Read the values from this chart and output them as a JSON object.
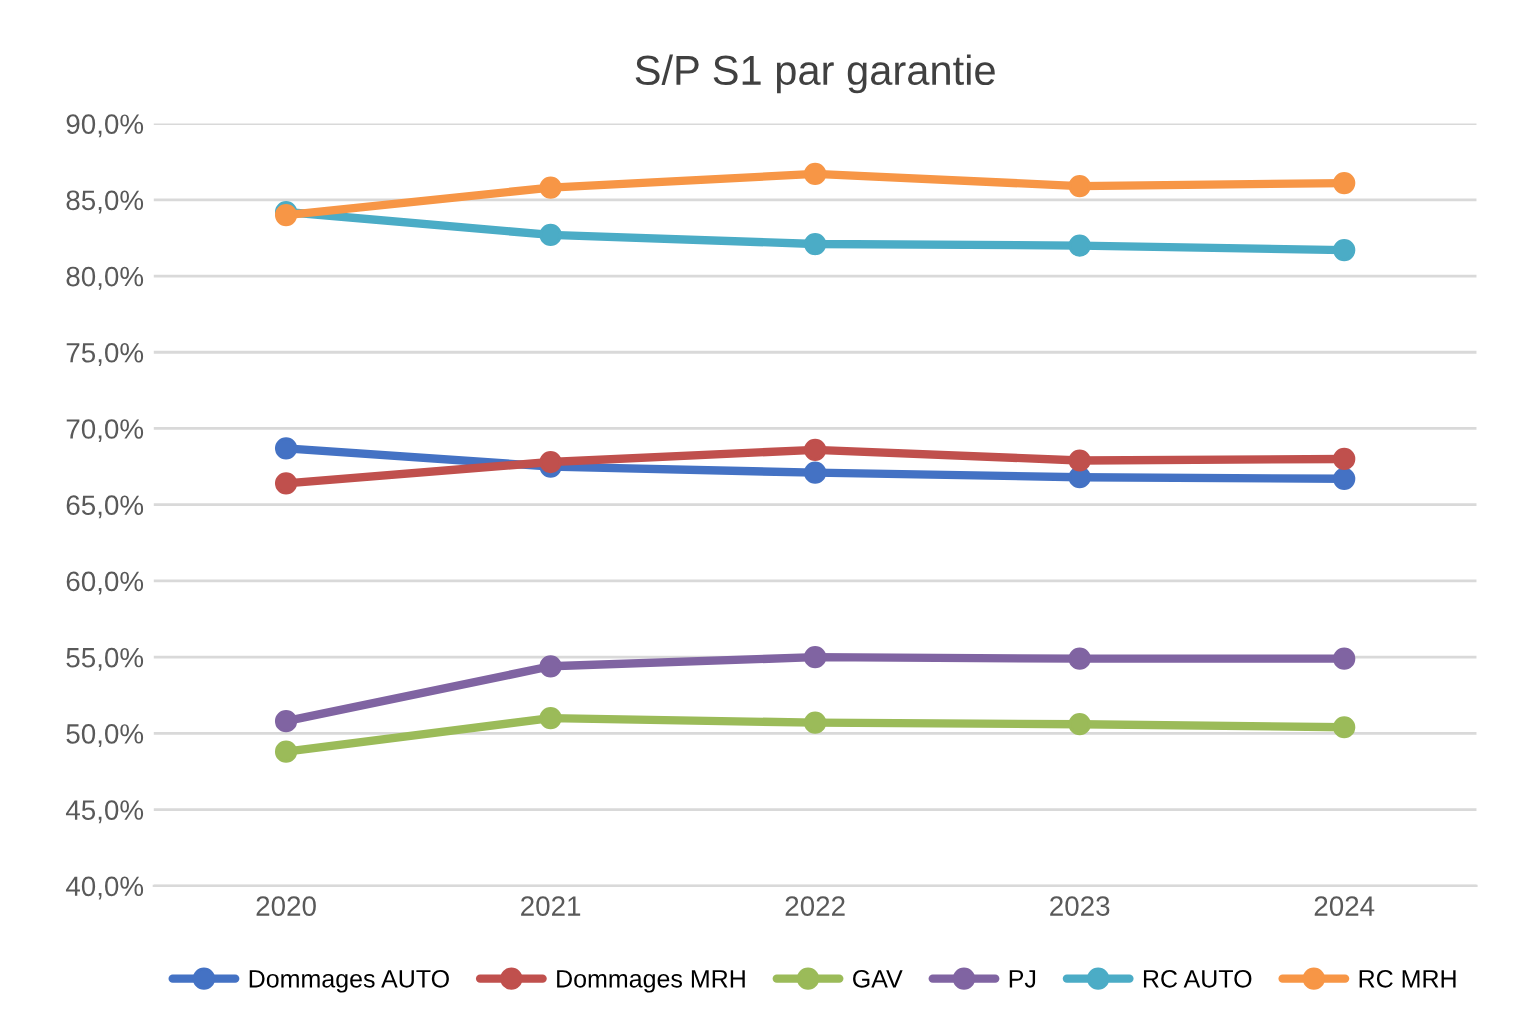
{
  "chart_data": {
    "type": "line",
    "title": "S/P S1 par garantie",
    "categories": [
      "2020",
      "2021",
      "2022",
      "2023",
      "2024"
    ],
    "series": [
      {
        "name": "Dommages AUTO",
        "color": "#4472c4",
        "values": [
          68.7,
          67.5,
          67.1,
          66.8,
          66.7
        ]
      },
      {
        "name": "Dommages MRH",
        "color": "#c0504d",
        "values": [
          66.4,
          67.8,
          68.6,
          67.9,
          68.0
        ]
      },
      {
        "name": "GAV",
        "color": "#9bbb59",
        "values": [
          48.8,
          51.0,
          50.7,
          50.6,
          50.4
        ]
      },
      {
        "name": "PJ",
        "color": "#8064a2",
        "values": [
          50.8,
          54.4,
          55.0,
          54.9,
          54.9
        ]
      },
      {
        "name": "RC AUTO",
        "color": "#4bacc6",
        "values": [
          84.2,
          82.7,
          82.1,
          82.0,
          81.7
        ]
      },
      {
        "name": "RC MRH",
        "color": "#f79646",
        "values": [
          84.0,
          85.8,
          86.7,
          85.9,
          86.1
        ]
      }
    ],
    "ylim": [
      40,
      90
    ],
    "yticks": [
      {
        "value": 40,
        "label": "40,0%"
      },
      {
        "value": 45,
        "label": "45,0%"
      },
      {
        "value": 50,
        "label": "50,0%"
      },
      {
        "value": 55,
        "label": "55,0%"
      },
      {
        "value": 60,
        "label": "60,0%"
      },
      {
        "value": 65,
        "label": "65,0%"
      },
      {
        "value": 70,
        "label": "70,0%"
      },
      {
        "value": 75,
        "label": "75,0%"
      },
      {
        "value": 80,
        "label": "80,0%"
      },
      {
        "value": 85,
        "label": "85,0%"
      },
      {
        "value": 90,
        "label": "90,0%"
      }
    ],
    "grid": "y",
    "legend": "bottom",
    "marker": "circle",
    "line_style": "solid"
  }
}
